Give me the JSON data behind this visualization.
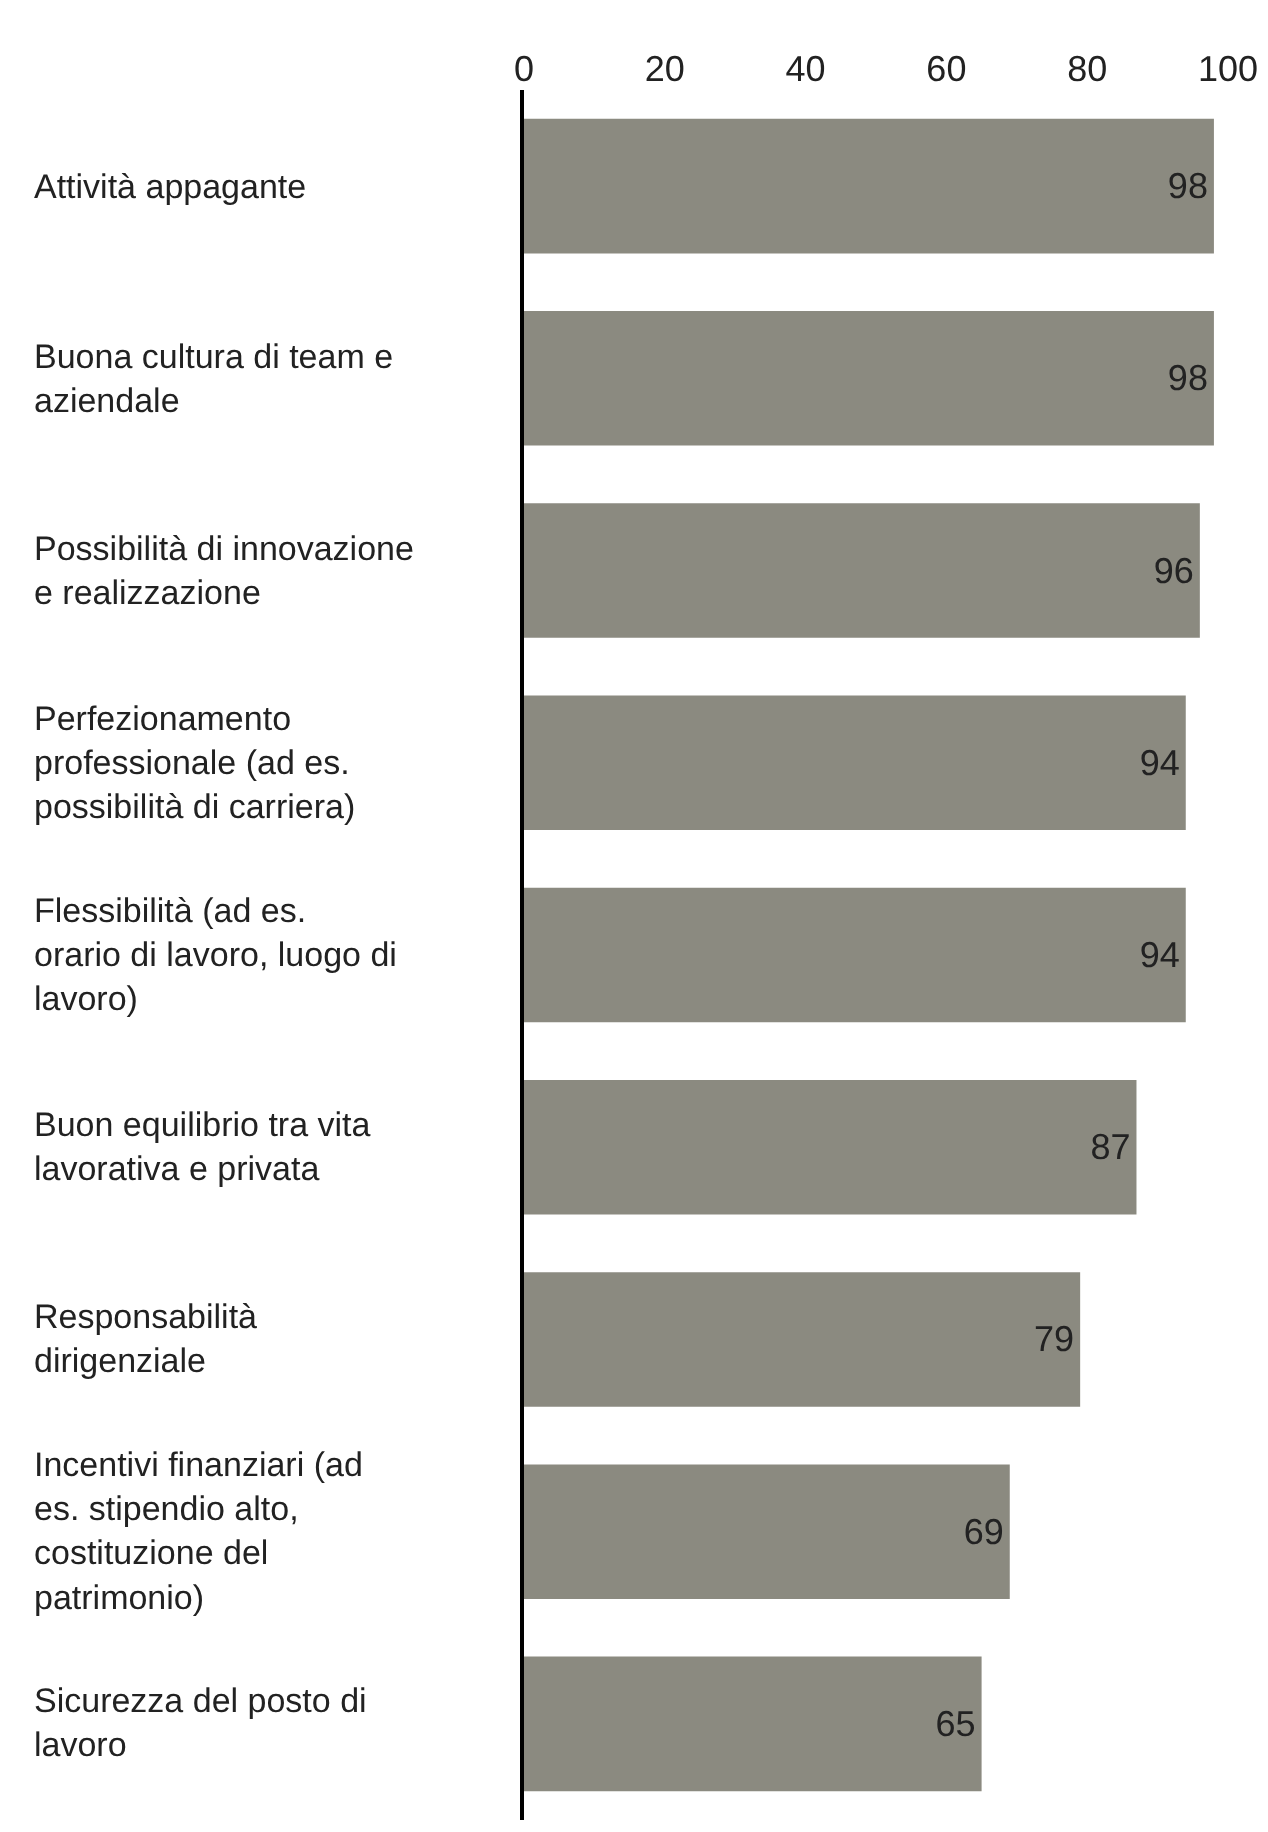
{
  "chart_data": {
    "type": "bar",
    "orientation": "horizontal",
    "categories": [
      "Attività appagante",
      "Buona cultura di team e aziendale",
      "Possibilità di innovazione e realizzazione",
      "Perfezionamento professionale (ad es. possibilità di carriera)",
      "Flessibilità (ad es. orario di lavoro, luogo di lavoro)",
      "Buon equilibrio tra vita lavorativa e privata",
      "Responsabilità dirigenziale",
      "Incentivi finanziari (ad es. stipendio alto, costituzione del patrimonio)",
      "Sicurezza del posto di lavoro"
    ],
    "values": [
      98,
      98,
      96,
      94,
      94,
      87,
      79,
      69,
      65
    ],
    "color": "#8b8a80",
    "data_labels": true,
    "legend": false,
    "xlim": [
      0,
      100
    ],
    "xticks": [
      0,
      20,
      40,
      60,
      80,
      100
    ]
  }
}
